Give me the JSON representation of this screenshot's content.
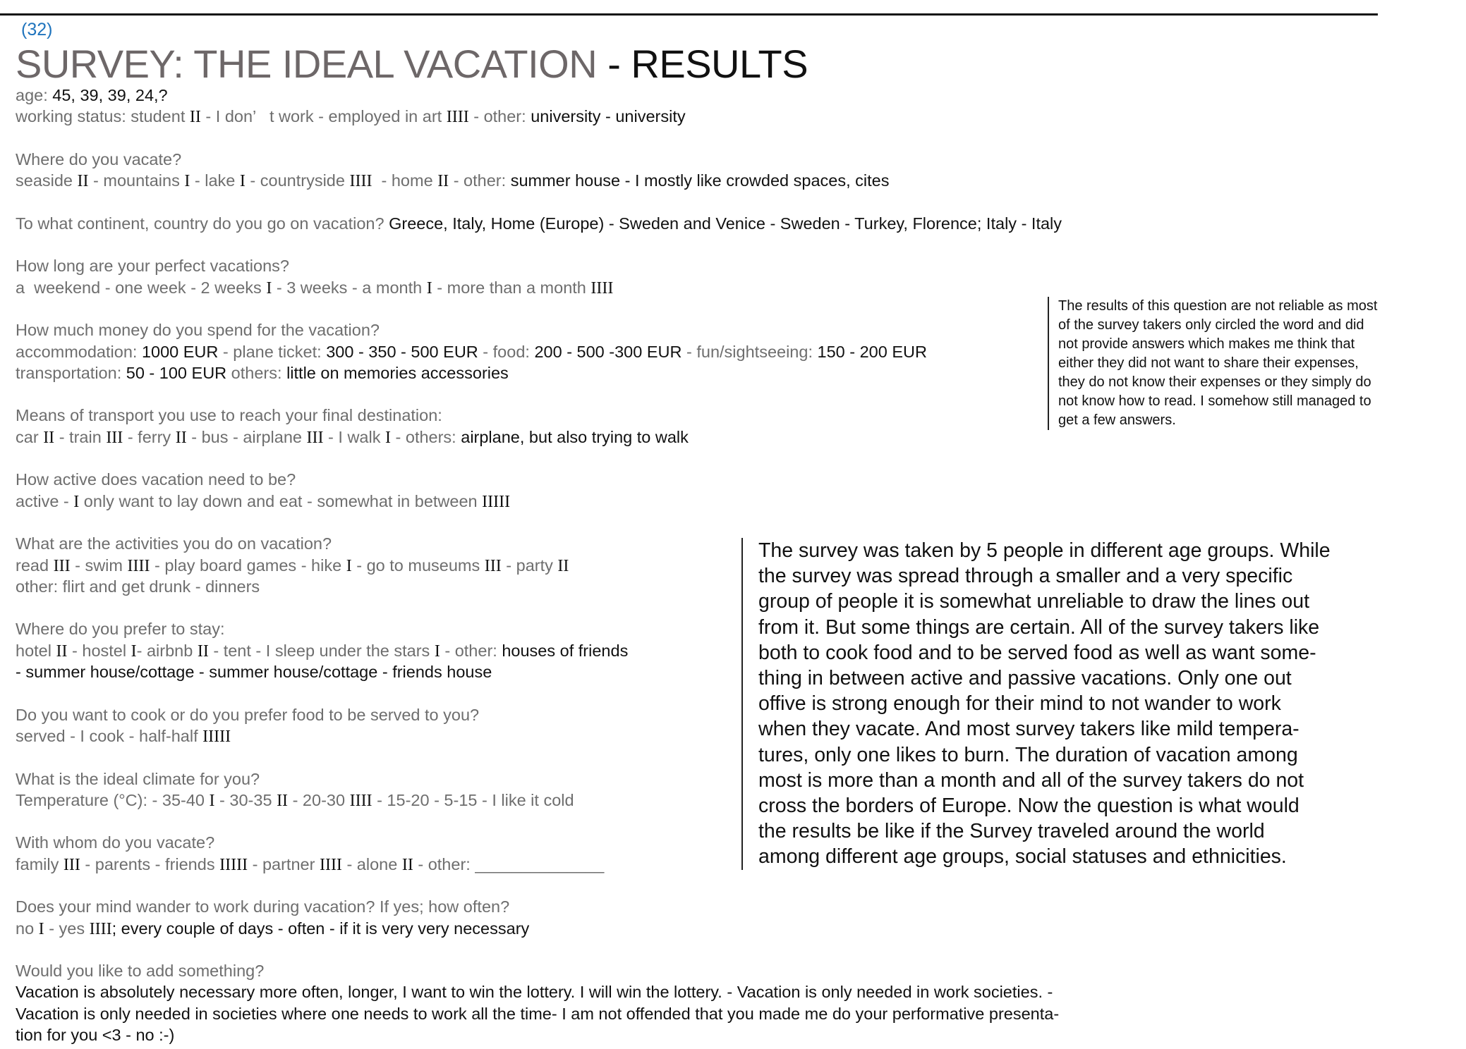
{
  "page_number": "(32)",
  "title": {
    "main": "SURVEY: THE IDEAL VACATION",
    "suffix": " - RESULTS"
  },
  "blocks": [
    [
      [
        [
          "age: ",
          "q"
        ],
        [
          "45, 39, 39, 24,?",
          "a"
        ]
      ],
      [
        [
          "working status: student ",
          "q"
        ],
        [
          "II",
          "t"
        ],
        [
          " - I don’   t work - employed in art ",
          "q"
        ],
        [
          "IIII",
          "t"
        ],
        [
          " - other: ",
          "q"
        ],
        [
          "university - university",
          "a"
        ]
      ]
    ],
    [
      [
        [
          "Where do you vacate?",
          "q"
        ]
      ],
      [
        [
          "seaside ",
          "q"
        ],
        [
          "II",
          "t"
        ],
        [
          " - mountains ",
          "q"
        ],
        [
          "I",
          "t"
        ],
        [
          " - lake ",
          "q"
        ],
        [
          "I",
          "t"
        ],
        [
          " - countryside ",
          "q"
        ],
        [
          "IIII",
          "t"
        ],
        [
          "  - home ",
          "q"
        ],
        [
          "II",
          "t"
        ],
        [
          " - other: ",
          "q"
        ],
        [
          "summer house - I mostly like crowded spaces, cites",
          "a"
        ]
      ]
    ],
    [
      [
        [
          "To what continent, country do you go on vacation? ",
          "q"
        ],
        [
          "Greece, Italy, Home (Europe) - Sweden and Venice - Sweden - Turkey, Florence; Italy - Italy",
          "a"
        ]
      ]
    ],
    [
      [
        [
          "How long are your perfect vacations?",
          "q"
        ]
      ],
      [
        [
          "a  weekend - one week - 2 weeks ",
          "q"
        ],
        [
          "I",
          "t"
        ],
        [
          " - 3 weeks - a month ",
          "q"
        ],
        [
          "I",
          "t"
        ],
        [
          " - more than a month ",
          "q"
        ],
        [
          "IIII",
          "t"
        ]
      ]
    ],
    [
      [
        [
          "How much money do you spend for the vacation?",
          "q"
        ]
      ],
      [
        [
          "accommodation: ",
          "q"
        ],
        [
          "1000 EUR",
          "a"
        ],
        [
          " - plane ticket: ",
          "q"
        ],
        [
          "300 - 350 - 500 EUR",
          "a"
        ],
        [
          " - food: ",
          "q"
        ],
        [
          "200 - 500 -300 EUR",
          "a"
        ],
        [
          " - fun/sightseeing: ",
          "q"
        ],
        [
          "150 - 200 EUR",
          "a"
        ]
      ],
      [
        [
          "transportation: ",
          "q"
        ],
        [
          "50 - 100 EUR",
          "a"
        ],
        [
          " others: ",
          "q"
        ],
        [
          "little on memories accessories",
          "a"
        ]
      ]
    ],
    [
      [
        [
          "Means of transport you use to reach your final destination:",
          "q"
        ]
      ],
      [
        [
          "car ",
          "q"
        ],
        [
          "II",
          "t"
        ],
        [
          " - train ",
          "q"
        ],
        [
          "III",
          "t"
        ],
        [
          " - ferry ",
          "q"
        ],
        [
          "II",
          "t"
        ],
        [
          " - bus - airplane ",
          "q"
        ],
        [
          "III",
          "t"
        ],
        [
          " - I walk ",
          "q"
        ],
        [
          "I",
          "t"
        ],
        [
          " - others: ",
          "q"
        ],
        [
          "airplane, but also trying to walk",
          "a"
        ]
      ]
    ],
    [
      [
        [
          "How active does vacation need to be?",
          "q"
        ]
      ],
      [
        [
          "active - ",
          "q"
        ],
        [
          "I",
          "t"
        ],
        [
          " only want to lay down and eat - somewhat in between ",
          "q"
        ],
        [
          "IIIII",
          "t"
        ]
      ]
    ],
    [
      [
        [
          "What are the activities you do on vacation?",
          "q"
        ]
      ],
      [
        [
          "read ",
          "q"
        ],
        [
          "III",
          "t"
        ],
        [
          " - swim ",
          "q"
        ],
        [
          "IIII",
          "t"
        ],
        [
          " - play board games - hike ",
          "q"
        ],
        [
          "I",
          "t"
        ],
        [
          " - go to museums ",
          "q"
        ],
        [
          "III",
          "t"
        ],
        [
          " - party ",
          "q"
        ],
        [
          "II",
          "t"
        ]
      ],
      [
        [
          "other: flirt and get drunk - dinners",
          "q"
        ]
      ]
    ],
    [
      [
        [
          "Where do you prefer to stay:",
          "q"
        ]
      ],
      [
        [
          "hotel ",
          "q"
        ],
        [
          "II",
          "t"
        ],
        [
          " - hostel ",
          "q"
        ],
        [
          "I",
          "t"
        ],
        [
          "- airbnb ",
          "q"
        ],
        [
          "II",
          "t"
        ],
        [
          " - tent - I sleep under the stars ",
          "q"
        ],
        [
          "I",
          "t"
        ],
        [
          " - other: ",
          "q"
        ],
        [
          "houses of friends",
          "a"
        ]
      ],
      [
        [
          "- summer house/cottage - summer house/cottage - friends house",
          "a"
        ]
      ]
    ],
    [
      [
        [
          "Do you want to cook or do you prefer food to be served to you?",
          "q"
        ]
      ],
      [
        [
          "served - I cook - half-half ",
          "q"
        ],
        [
          "IIIII",
          "t"
        ]
      ]
    ],
    [
      [
        [
          "What is the ideal climate for you?",
          "q"
        ]
      ],
      [
        [
          "Temperature (°C): - 35-40 ",
          "q"
        ],
        [
          "I",
          "t"
        ],
        [
          " - 30-35 ",
          "q"
        ],
        [
          "II",
          "t"
        ],
        [
          " - 20-30 ",
          "q"
        ],
        [
          "IIII",
          "t"
        ],
        [
          " - 15-20 - 5-15 - I like it cold",
          "q"
        ]
      ]
    ],
    [
      [
        [
          "With whom do you vacate?",
          "q"
        ]
      ],
      [
        [
          "family ",
          "q"
        ],
        [
          "III",
          "t"
        ],
        [
          " - parents - friends ",
          "q"
        ],
        [
          "IIIII",
          "t"
        ],
        [
          " - partner ",
          "q"
        ],
        [
          "IIII",
          "t"
        ],
        [
          " - alone ",
          "q"
        ],
        [
          "II",
          "t"
        ],
        [
          " - other: ______________",
          "q"
        ]
      ]
    ],
    [
      [
        [
          "Does your mind wander to work during vacation? If yes; how often?",
          "q"
        ]
      ],
      [
        [
          "no ",
          "q"
        ],
        [
          "I",
          "t"
        ],
        [
          " - yes ",
          "q"
        ],
        [
          "IIII",
          "t"
        ],
        [
          "; every couple of days - often - if it is very very necessary",
          "a"
        ]
      ]
    ],
    [
      [
        [
          "Would you like to add something?",
          "q"
        ]
      ],
      [
        [
          "Vacation is absolutely necessary more often, longer, I want to win the lottery. I will win the lottery. - Vacation is only needed in work societies. -",
          "a"
        ]
      ],
      [
        [
          "Vacation is only needed in societies where one needs to work all the time- I am not offended that you made me do your performative presenta-",
          "a"
        ]
      ],
      [
        [
          "tion for you <3 - no :-)",
          "a"
        ]
      ]
    ]
  ],
  "note_lines": [
    "The results of this question are not reliable as most",
    "of the survey takers only circled the word and did",
    "not provide answers which makes me think that",
    "either they did not want to share their expenses,",
    "they do not know their expenses or they simply do",
    "not know how to read. I somehow still managed to",
    "get a few answers."
  ],
  "summary_lines": [
    "The survey was taken by 5 people in different age groups. While",
    "the survey was spread through a smaller and a very specific",
    "group of people it is somewhat unreliable to draw the lines out",
    "from it. But some things are certain. All of the survey takers like",
    "both to cook food and to be served food as well as want some-",
    "thing in between active and passive vacations. Only one out",
    "offive is strong enough for their mind to not wander to work",
    "when they vacate. And most survey takers like mild tempera-",
    "tures, only one likes to burn. The duration of vacation among",
    "most is more than a month and all of the survey takers do not",
    "cross the borders of Europe. Now the question is what would",
    "the results be like if the Survey traveled around the world",
    "among different age groups, social statuses and ethnicities."
  ]
}
